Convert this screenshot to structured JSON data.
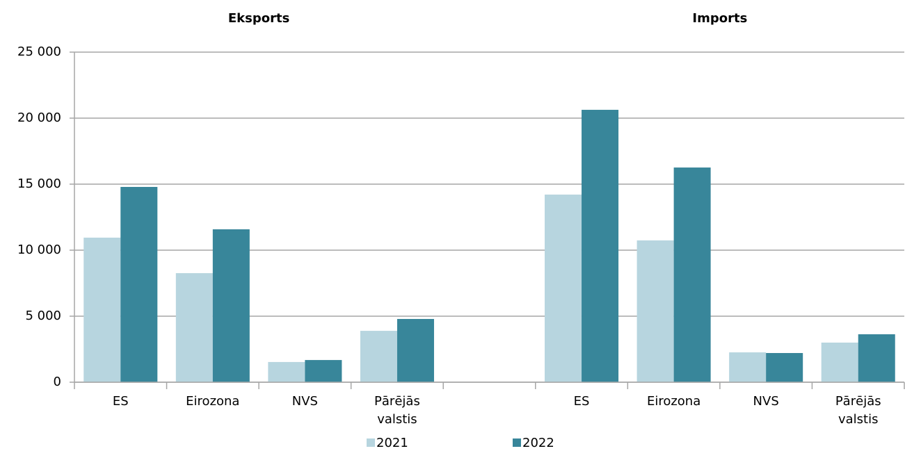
{
  "chart_data": {
    "type": "bar",
    "group_titles": [
      "Eksports",
      "Imports"
    ],
    "categories": [
      "ES",
      "Eirozona",
      "NVS",
      "Pārējās valstis",
      null,
      "ES",
      "Eirozona",
      "NVS",
      "Pārējās valstis"
    ],
    "series": [
      {
        "name": "2021",
        "color": "#b7d5df",
        "values": [
          10950,
          8260,
          1530,
          3890,
          null,
          14210,
          10740,
          2260,
          3000
        ]
      },
      {
        "name": "2022",
        "color": "#38869a",
        "values": [
          14790,
          11580,
          1680,
          4790,
          null,
          20630,
          16260,
          2210,
          3630
        ]
      }
    ],
    "ylim": [
      0,
      25000
    ],
    "yticks": [
      {
        "value": 0,
        "label": "0"
      },
      {
        "value": 5000,
        "label": "5 000"
      },
      {
        "value": 10000,
        "label": "10 000"
      },
      {
        "value": 15000,
        "label": "15 000"
      },
      {
        "value": 20000,
        "label": "20 000"
      },
      {
        "value": 25000,
        "label": "25 000"
      }
    ],
    "grid": true,
    "legend": "bottom"
  }
}
